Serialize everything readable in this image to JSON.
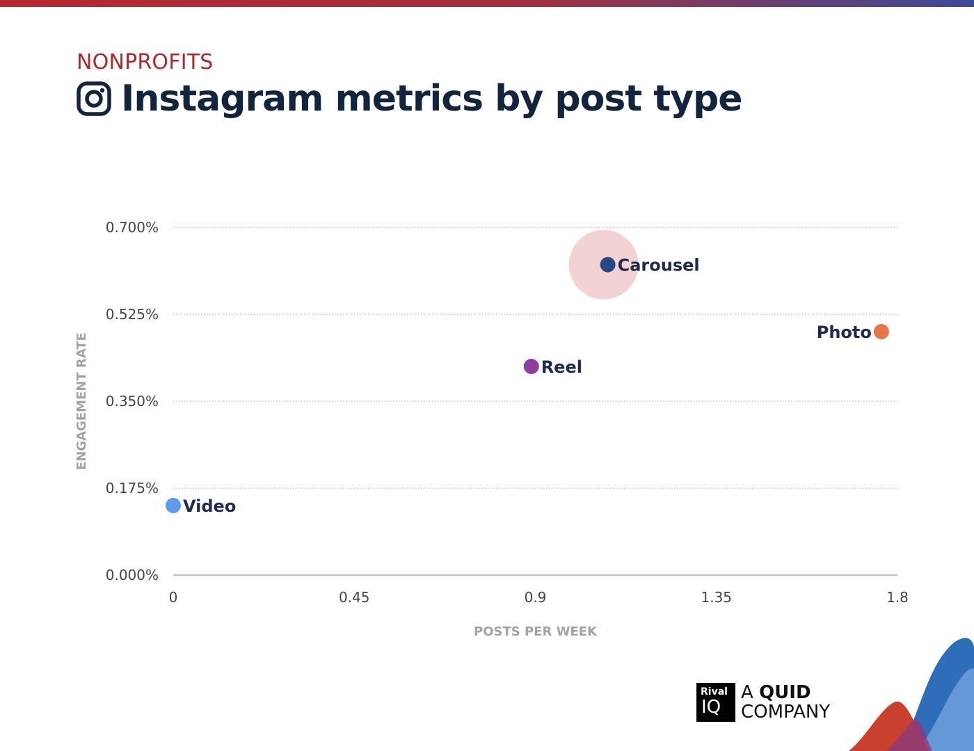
{
  "header": {
    "category": "NONPROFITS",
    "title": "Instagram metrics by post type",
    "icon": "instagram-icon"
  },
  "colors": {
    "category": "#b5262c",
    "title": "#13253d",
    "video": "#5b9cec",
    "reel": "#8e3e9e",
    "carousel": "#234a82",
    "photo": "#e8754a",
    "highlight": "#f2d2d2"
  },
  "chart_data": {
    "type": "scatter",
    "xlabel": "POSTS PER WEEK",
    "ylabel": "ENGAGEMENT RATE",
    "xlim": [
      0,
      1.8
    ],
    "ylim": [
      0,
      0.7
    ],
    "x_ticks": [
      "0",
      "0.45",
      "0.9",
      "1.35",
      "1.8"
    ],
    "y_ticks": [
      "0.000%",
      "0.175%",
      "0.350%",
      "0.525%",
      "0.700%"
    ],
    "grid": true,
    "points": [
      {
        "label": "Video",
        "x": 0.0,
        "y": 0.14,
        "color": "#5b9cec",
        "label_side": "right"
      },
      {
        "label": "Reel",
        "x": 0.89,
        "y": 0.42,
        "color": "#8e3e9e",
        "label_side": "right"
      },
      {
        "label": "Carousel",
        "x": 1.08,
        "y": 0.625,
        "color": "#234a82",
        "label_side": "right",
        "highlight": true
      },
      {
        "label": "Photo",
        "x": 1.76,
        "y": 0.49,
        "color": "#e8754a",
        "label_side": "left"
      }
    ]
  },
  "branding": {
    "logo_line1": "Rival",
    "logo_line2": "IQ",
    "tag_prefix": "A ",
    "tag_bold": "QUID",
    "tag_line2": "COMPANY"
  }
}
